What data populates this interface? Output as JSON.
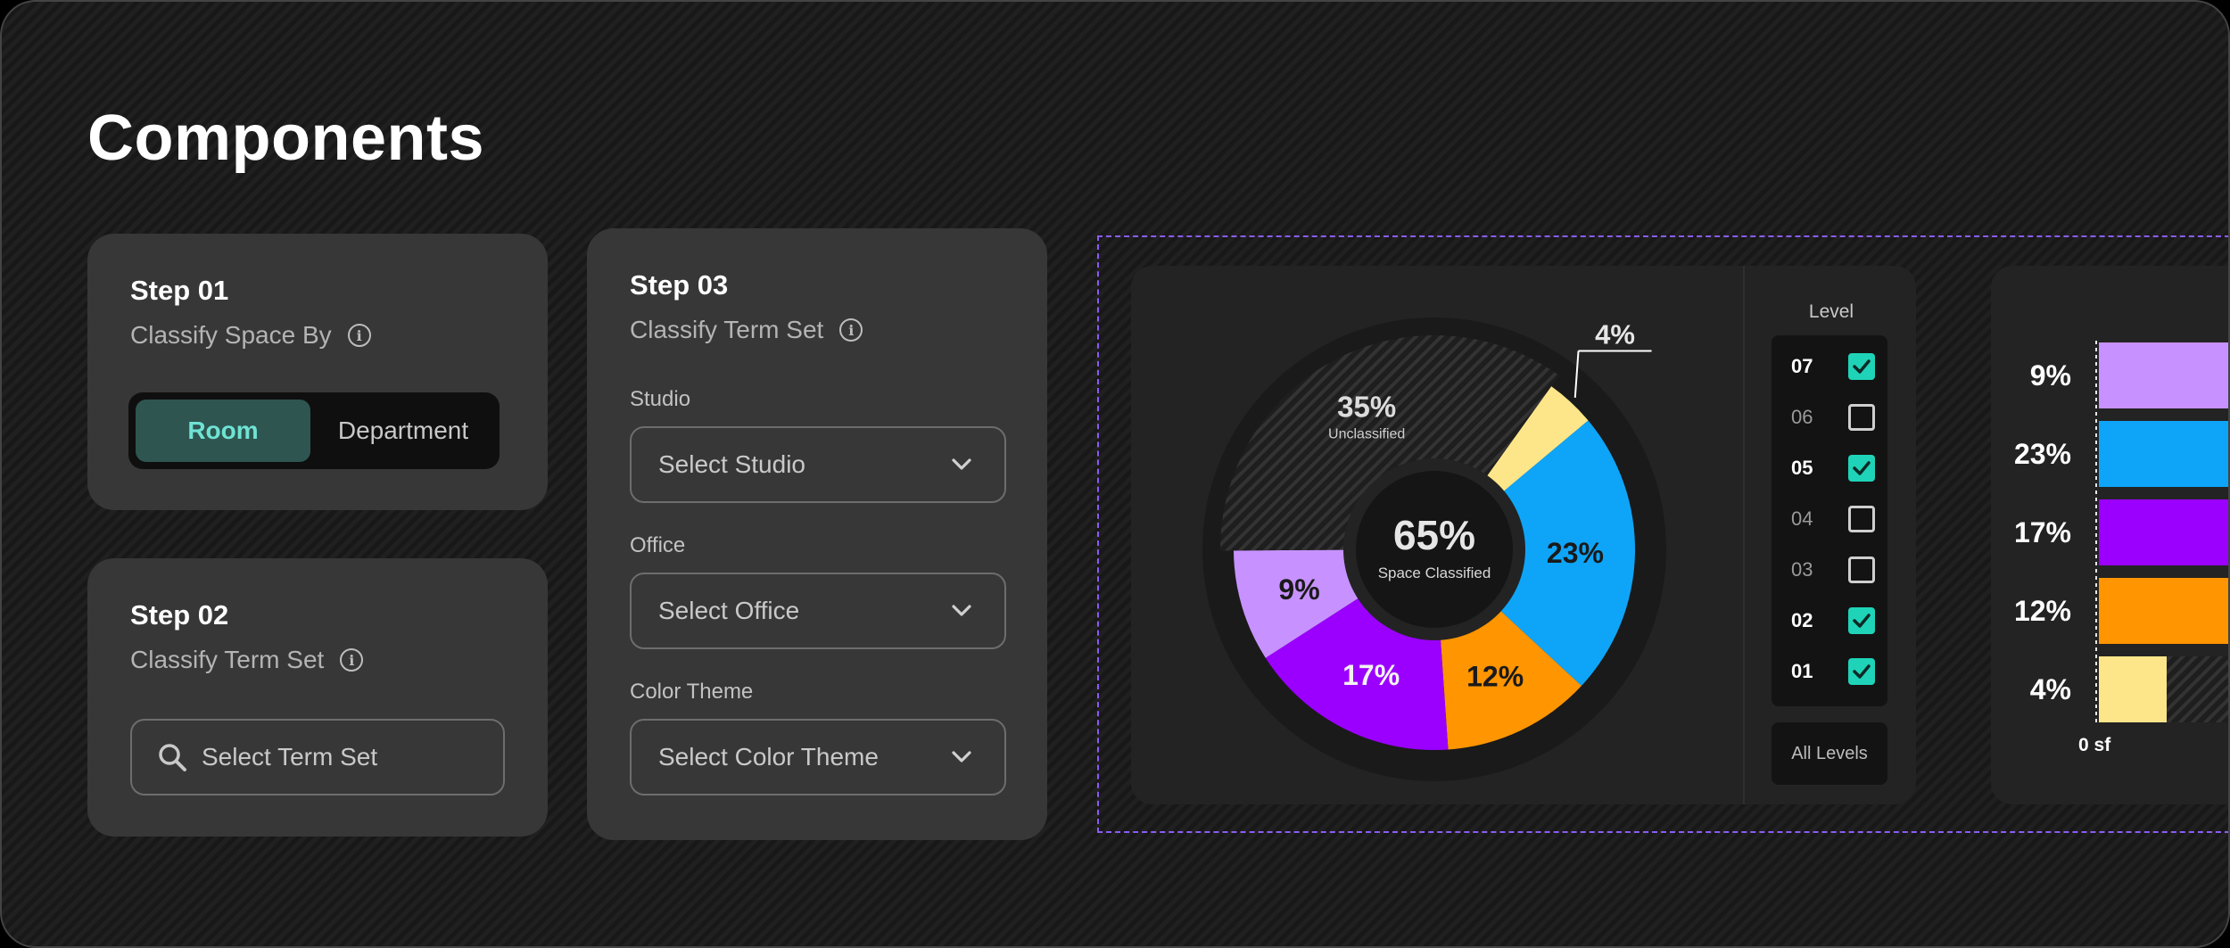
{
  "page": {
    "title": "Components"
  },
  "step1": {
    "title": "Step 01",
    "subtitle": "Classify Space By",
    "options": [
      "Room",
      "Department"
    ],
    "selected": "Room"
  },
  "step2": {
    "title": "Step 02",
    "subtitle": "Classify Term Set",
    "search_placeholder": "Select Term Set"
  },
  "step3": {
    "title": "Step 03",
    "subtitle": "Classify Term Set",
    "fields": [
      {
        "label": "Studio",
        "placeholder": "Select Studio"
      },
      {
        "label": "Office",
        "placeholder": "Select Office"
      },
      {
        "label": "Color Theme",
        "placeholder": "Select Color Theme"
      }
    ]
  },
  "chart_data": [
    {
      "type": "pie",
      "variant": "donut",
      "center_value": "65%",
      "center_label": "Space Classified",
      "slices": [
        {
          "label": "4%",
          "value": 4,
          "color": "#fde68a"
        },
        {
          "label": "23%",
          "value": 23,
          "color": "#0ea5f8"
        },
        {
          "label": "12%",
          "value": 12,
          "color": "#ff9500"
        },
        {
          "label": "17%",
          "value": 17,
          "color": "#9b00ff"
        },
        {
          "label": "9%",
          "value": 9,
          "color": "#c792ff"
        },
        {
          "label": "35%",
          "sublabel": "Unclassified",
          "value": 35,
          "color": "hatched"
        }
      ]
    },
    {
      "type": "bar",
      "orientation": "horizontal",
      "categories": [
        "9%",
        "23%",
        "17%",
        "12%",
        "4%"
      ],
      "values": [
        9,
        23,
        17,
        12,
        4
      ],
      "colors": [
        "#c792ff",
        "#0ea5f8",
        "#9b00ff",
        "#ff9500",
        "#fde68a"
      ],
      "axis_label": "0 sf"
    }
  ],
  "levels": {
    "title": "Level",
    "items": [
      {
        "label": "07",
        "checked": true
      },
      {
        "label": "06",
        "checked": false
      },
      {
        "label": "05",
        "checked": true
      },
      {
        "label": "04",
        "checked": false
      },
      {
        "label": "03",
        "checked": false
      },
      {
        "label": "02",
        "checked": true
      },
      {
        "label": "01",
        "checked": true
      }
    ],
    "all_label": "All Levels"
  },
  "colors": {
    "accent": "#1fd3b8",
    "card": "#373737",
    "dashed_border": "#8b5cf6"
  }
}
